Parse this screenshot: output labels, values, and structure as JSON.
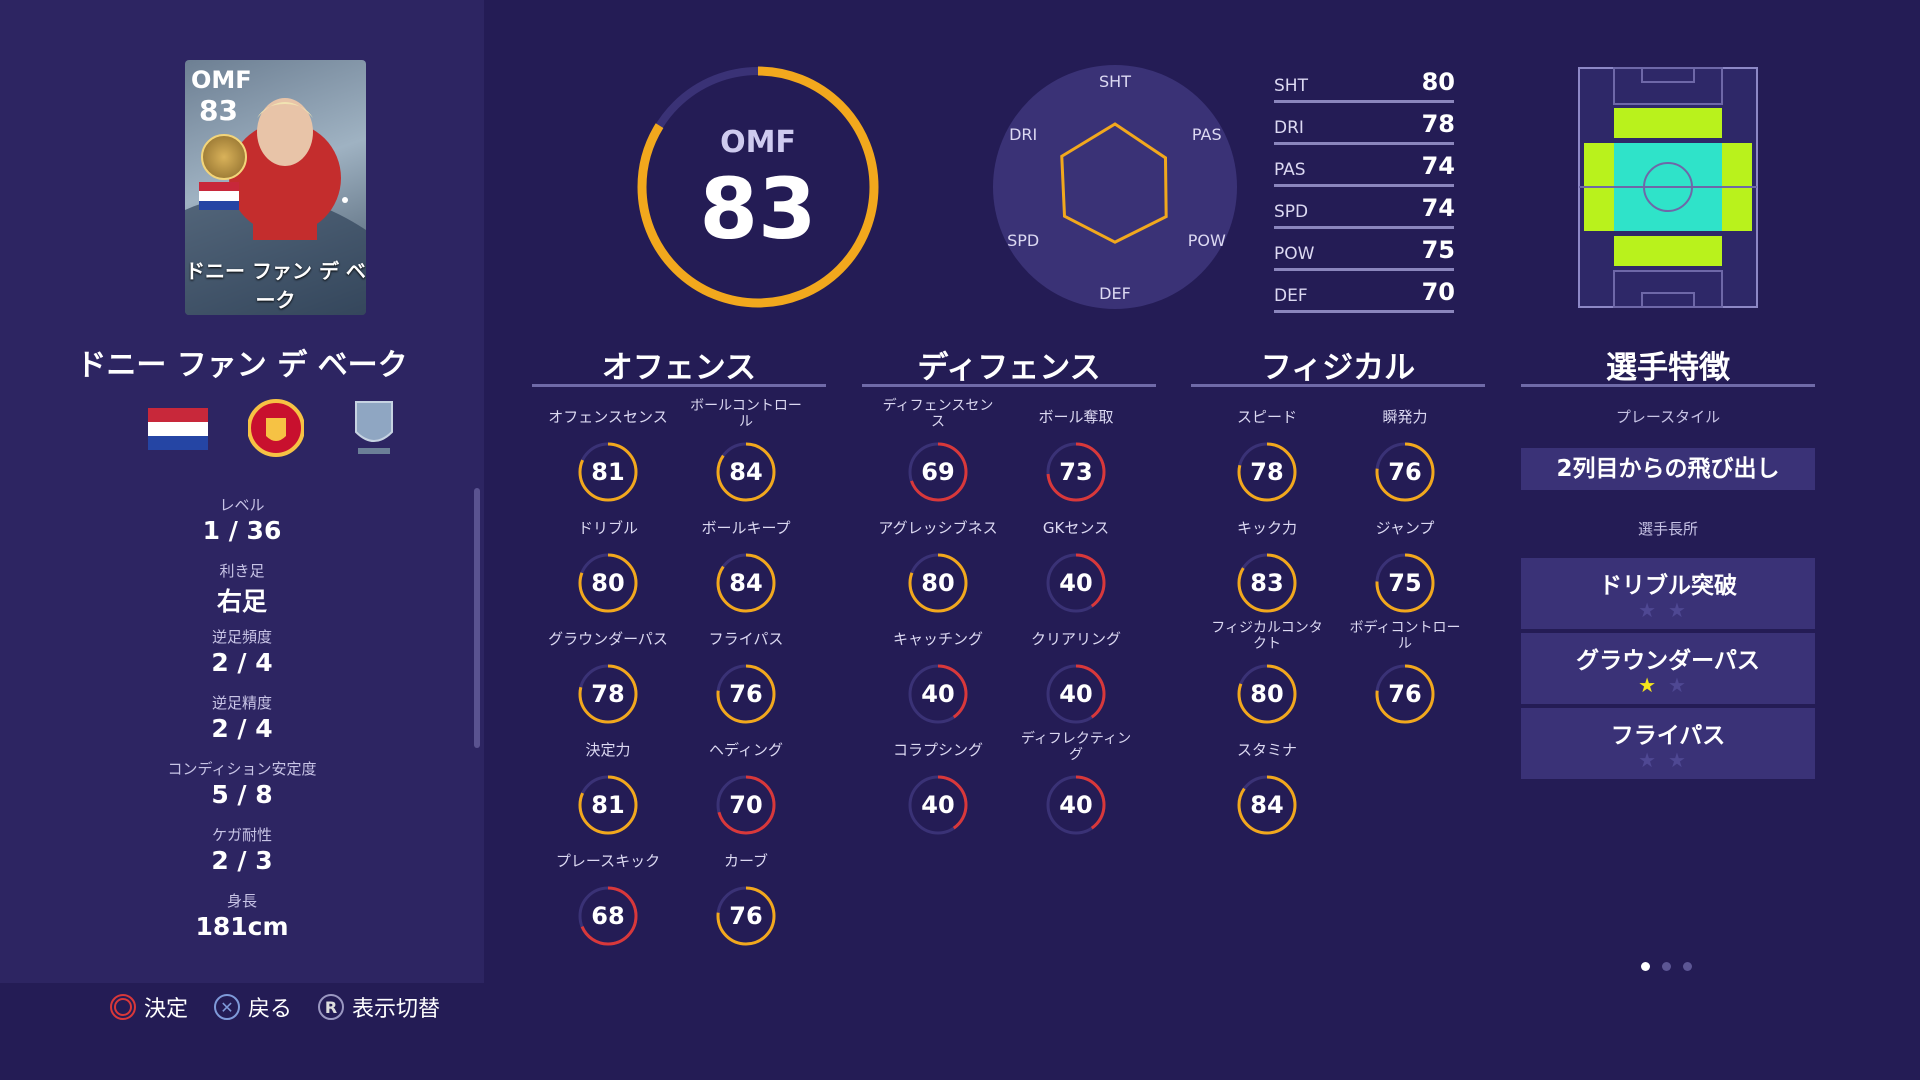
{
  "player": {
    "card_position": "OMF",
    "card_overall": "83",
    "card_name": "ドニー ファン デ ベーク",
    "name": "ドニー ファン デ ベーク",
    "position": "OMF",
    "overall": 83
  },
  "profile": [
    {
      "label": "レベル",
      "value": "1 / 36"
    },
    {
      "label": "利き足",
      "value": "右足"
    },
    {
      "label": "逆足頻度",
      "value": "2 / 4"
    },
    {
      "label": "逆足精度",
      "value": "2 / 4"
    },
    {
      "label": "コンディション安定度",
      "value": "5 / 8"
    },
    {
      "label": "ケガ耐性",
      "value": "2 / 3"
    },
    {
      "label": "身長",
      "value": "181cm"
    }
  ],
  "footer": [
    {
      "icon": "circle-icon",
      "label": "決定"
    },
    {
      "icon": "cross-icon",
      "label": "戻る"
    },
    {
      "icon": "r-button-icon",
      "glyph": "R",
      "label": "表示切替"
    }
  ],
  "radar": {
    "labels": [
      "SHT",
      "PAS",
      "POW",
      "DEF",
      "SPD",
      "DRI"
    ],
    "values": [
      80,
      74,
      75,
      70,
      74,
      78
    ]
  },
  "summary": [
    {
      "label": "SHT",
      "value": 80
    },
    {
      "label": "DRI",
      "value": 78
    },
    {
      "label": "PAS",
      "value": 74
    },
    {
      "label": "SPD",
      "value": 74
    },
    {
      "label": "POW",
      "value": 75
    },
    {
      "label": "DEF",
      "value": 70
    }
  ],
  "sections": {
    "offense": {
      "title": "オフェンス",
      "attrs": [
        {
          "label": "オフェンスセンス",
          "value": 81
        },
        {
          "label": "ボールコントロール",
          "value": 84
        },
        {
          "label": "ドリブル",
          "value": 80
        },
        {
          "label": "ボールキープ",
          "value": 84
        },
        {
          "label": "グラウンダーパス",
          "value": 78
        },
        {
          "label": "フライパス",
          "value": 76
        },
        {
          "label": "決定力",
          "value": 81
        },
        {
          "label": "ヘディング",
          "value": 70
        },
        {
          "label": "プレースキック",
          "value": 68
        },
        {
          "label": "カーブ",
          "value": 76
        }
      ]
    },
    "defense": {
      "title": "ディフェンス",
      "attrs": [
        {
          "label": "ディフェンスセンス",
          "value": 69
        },
        {
          "label": "ボール奪取",
          "value": 73
        },
        {
          "label": "アグレッシブネス",
          "value": 80
        },
        {
          "label": "GKセンス",
          "value": 40
        },
        {
          "label": "キャッチング",
          "value": 40
        },
        {
          "label": "クリアリング",
          "value": 40
        },
        {
          "label": "コラプシング",
          "value": 40
        },
        {
          "label": "ディフレクティング",
          "value": 40
        }
      ]
    },
    "physical": {
      "title": "フィジカル",
      "attrs": [
        {
          "label": "スピード",
          "value": 78
        },
        {
          "label": "瞬発力",
          "value": 76
        },
        {
          "label": "キック力",
          "value": 83
        },
        {
          "label": "ジャンプ",
          "value": 75
        },
        {
          "label": "フィジカルコンタクト",
          "value": 80
        },
        {
          "label": "ボディコントロール",
          "value": 76
        },
        {
          "label": "スタミナ",
          "value": 84
        }
      ]
    }
  },
  "traits": {
    "title": "選手特徴",
    "playstyle_label": "プレースタイル",
    "playstyle": "2列目からの飛び出し",
    "skills_label": "選手長所",
    "skills": [
      {
        "name": "ドリブル突破",
        "stars": 0,
        "max": 2
      },
      {
        "name": "グラウンダーパス",
        "stars": 1,
        "max": 2
      },
      {
        "name": "フライパス",
        "stars": 0,
        "max": 2
      }
    ]
  },
  "colors": {
    "gold": "#f2a81d",
    "red": "#d9383a",
    "accent_green": "#b9f21c",
    "accent_cyan": "#2fe3c9"
  },
  "page_dots": {
    "count": 3,
    "active": 0
  }
}
